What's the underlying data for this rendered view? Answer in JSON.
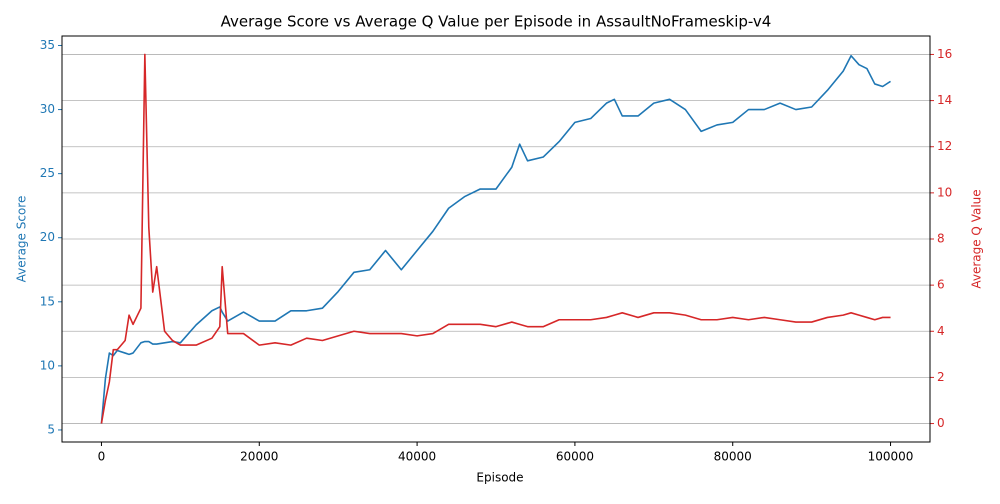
{
  "chart_data": {
    "type": "line",
    "title": "Average Score vs Average Q Value per Episode in AssaultNoFrameskip-v4",
    "x_label": "Episode",
    "y_label": "Average Score",
    "y2_label": "Average Q Value",
    "x": [
      0,
      500,
      1000,
      1500,
      2000,
      3000,
      3500,
      4000,
      5000,
      5500,
      6000,
      6500,
      7000,
      8000,
      9000,
      10000,
      12000,
      14000,
      15000,
      15300,
      16000,
      18000,
      20000,
      22000,
      24000,
      26000,
      28000,
      30000,
      32000,
      34000,
      36000,
      38000,
      40000,
      42000,
      44000,
      46000,
      48000,
      50000,
      52000,
      53000,
      54000,
      56000,
      58000,
      60000,
      62000,
      64000,
      65000,
      66000,
      68000,
      70000,
      72000,
      74000,
      76000,
      78000,
      80000,
      82000,
      84000,
      86000,
      88000,
      90000,
      92000,
      94000,
      95000,
      96000,
      97000,
      98000,
      99000,
      100000
    ],
    "series": [
      {
        "name": "Average Score",
        "color": "#1f77b4",
        "axis": "y",
        "values": [
          5.5,
          9,
          11,
          10.8,
          11.2,
          11,
          10.9,
          11,
          11.8,
          11.9,
          11.9,
          11.7,
          11.7,
          11.8,
          11.9,
          11.8,
          13.2,
          14.3,
          14.6,
          14.2,
          13.5,
          14.2,
          13.5,
          13.5,
          14.3,
          14.3,
          14.5,
          15.8,
          17.3,
          17.5,
          19,
          17.5,
          19,
          20.5,
          22.3,
          23.2,
          23.8,
          23.8,
          25.5,
          27.3,
          26,
          26.3,
          27.5,
          29,
          29.3,
          30.5,
          30.8,
          29.5,
          29.5,
          30.5,
          30.8,
          30,
          28.3,
          28.8,
          29,
          30,
          30,
          30.5,
          30,
          30.2,
          31.5,
          33,
          34.2,
          33.5,
          33.2,
          32,
          31.8,
          32.2
        ]
      },
      {
        "name": "Average Q Value",
        "color": "#d62728",
        "axis": "y2",
        "values": [
          0,
          1,
          1.8,
          3.2,
          3.2,
          3.6,
          4.7,
          4.3,
          5,
          16,
          8.5,
          5.7,
          6.8,
          4,
          3.6,
          3.4,
          3.4,
          3.7,
          4.2,
          6.8,
          3.9,
          3.9,
          3.4,
          3.5,
          3.4,
          3.7,
          3.6,
          3.8,
          4,
          3.9,
          3.9,
          3.9,
          3.8,
          3.9,
          4.3,
          4.3,
          4.3,
          4.2,
          4.4,
          4.3,
          4.2,
          4.2,
          4.5,
          4.5,
          4.5,
          4.6,
          4.7,
          4.8,
          4.6,
          4.8,
          4.8,
          4.7,
          4.5,
          4.5,
          4.6,
          4.5,
          4.6,
          4.5,
          4.4,
          4.4,
          4.6,
          4.7,
          4.8,
          4.7,
          4.6,
          4.5,
          4.6,
          4.6
        ]
      }
    ],
    "xlim": [
      -5000,
      105000
    ],
    "xticks": [
      0,
      20000,
      40000,
      60000,
      80000,
      100000
    ],
    "ylim": [
      4.06,
      35.74
    ],
    "yticks": [
      5,
      10,
      15,
      20,
      25,
      30,
      35
    ],
    "y2lim": [
      -0.8,
      16.8
    ],
    "y2ticks": [
      0,
      2,
      4,
      6,
      8,
      10,
      12,
      14,
      16
    ],
    "grid": "y2"
  }
}
